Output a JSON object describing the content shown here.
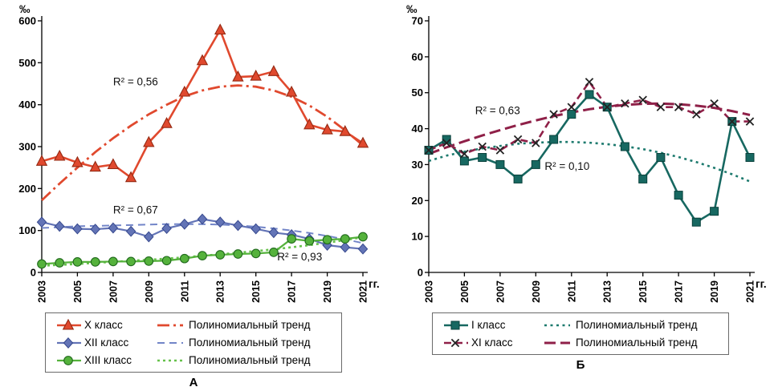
{
  "chart_data": [
    {
      "type": "line",
      "panel_label": "А",
      "y_unit": "‰",
      "x_unit": "гг.",
      "y_min": 0,
      "y_max": 600,
      "y_step": 100,
      "y_ticks": [
        0,
        100,
        200,
        300,
        400,
        500,
        600
      ],
      "x": [
        2003,
        2004,
        2005,
        2006,
        2007,
        2008,
        2009,
        2010,
        2011,
        2012,
        2013,
        2014,
        2015,
        2016,
        2017,
        2018,
        2019,
        2020,
        2021
      ],
      "x_tick_labels": [
        "2003",
        "2005",
        "2007",
        "2009",
        "2011",
        "2013",
        "2015",
        "2017",
        "2019",
        "2021"
      ],
      "grid": false,
      "legend_position": "bottom",
      "series": [
        {
          "label": "X класс",
          "color": "#e0492e",
          "line_width": 2.6,
          "marker": "triangle",
          "marker_color": "#e0492e",
          "marker_stroke": "#942912",
          "values": [
            265,
            277,
            262,
            251,
            257,
            226,
            310,
            355,
            430,
            505,
            578,
            466,
            468,
            479,
            430,
            352,
            340,
            336,
            308
          ]
        },
        {
          "label": "XII класс",
          "color": "#6374b6",
          "line_width": 2.2,
          "marker": "diamond",
          "marker_color": "#6374b6",
          "marker_stroke": "#36488e",
          "values": [
            120,
            110,
            104,
            103,
            106,
            98,
            85,
            105,
            115,
            127,
            120,
            112,
            104,
            95,
            90,
            80,
            65,
            60,
            56
          ]
        },
        {
          "label": "XIII класс",
          "color": "#55b23c",
          "line_width": 2.3,
          "marker": "circle",
          "marker_color": "#55b23c",
          "marker_stroke": "#20691c",
          "values": [
            20,
            23,
            25,
            25,
            26,
            26,
            27,
            28,
            33,
            40,
            42,
            44,
            45,
            48,
            80,
            75,
            78,
            80,
            85
          ]
        }
      ],
      "trends": [
        {
          "label": "Полиномиальный тренд",
          "color": "#e0492e",
          "width": 2.8,
          "dash": "15 5 3 5",
          "r2": {
            "text": "R² = 0,56",
            "x": 2007,
            "y": 446
          },
          "values": [
            172,
            212,
            250,
            287,
            320,
            350,
            377,
            400,
            420,
            434,
            443,
            446,
            443,
            434,
            419,
            398,
            371,
            339,
            303
          ]
        },
        {
          "label": "Полиномиальный тренд",
          "color": "#7285c8",
          "width": 2,
          "dash": "9 6",
          "r2": {
            "text": "R² = 0,67",
            "x": 2007,
            "y": 140
          },
          "values": [
            106,
            108,
            110,
            111,
            112,
            113,
            114,
            115,
            115,
            115,
            114,
            112,
            109,
            105,
            100,
            94,
            87,
            79,
            70
          ]
        },
        {
          "label": "Полиномиальный тренд",
          "color": "#66c14b",
          "width": 2.6,
          "dash": "3 4",
          "r2": {
            "text": "R² = 0,93",
            "x": 2016.2,
            "y": 29
          },
          "values": [
            16,
            18,
            20,
            23,
            25,
            28,
            30,
            33,
            36,
            40,
            43,
            47,
            51,
            55,
            60,
            65,
            71,
            77,
            84
          ]
        }
      ]
    },
    {
      "type": "line",
      "panel_label": "Б",
      "y_unit": "‰",
      "x_unit": "гг.",
      "y_min": 0,
      "y_max": 70,
      "y_step": 10,
      "y_ticks": [
        0,
        10,
        20,
        30,
        40,
        50,
        60,
        70
      ],
      "x": [
        2003,
        2004,
        2005,
        2006,
        2007,
        2008,
        2009,
        2010,
        2011,
        2012,
        2013,
        2014,
        2015,
        2016,
        2017,
        2018,
        2019,
        2020,
        2021
      ],
      "x_tick_labels": [
        "2003",
        "2005",
        "2007",
        "2009",
        "2011",
        "2013",
        "2015",
        "2017",
        "2019",
        "2021"
      ],
      "grid": false,
      "legend_position": "bottom",
      "series": [
        {
          "label": "I класс",
          "color": "#176861",
          "line_width": 2.6,
          "marker": "square",
          "marker_color": "#176861",
          "marker_stroke": "#08403b",
          "values": [
            34,
            37,
            31,
            32,
            30,
            26,
            30,
            37,
            44,
            49.5,
            46,
            35,
            26,
            32,
            21.5,
            14,
            17,
            42,
            32
          ]
        },
        {
          "label": "XI класс",
          "color": "#8f2048",
          "line_width": 2.6,
          "dash": "9 5",
          "marker": "x",
          "marker_color": "none",
          "marker_stroke": "#222222",
          "values": [
            34,
            36,
            33,
            35,
            34,
            37,
            36,
            44,
            46,
            53,
            46,
            47,
            48,
            46,
            46,
            44,
            47,
            42,
            42
          ]
        }
      ],
      "trends": [
        {
          "label": "Полиномиальный тренд",
          "color": "#1d7a6e",
          "width": 2.6,
          "dash": "3 4.5",
          "r2": {
            "text": "R² = 0,10",
            "x": 2009.5,
            "y": 28.5
          },
          "values": [
            31,
            32.5,
            33.6,
            34.5,
            35.2,
            35.8,
            36.1,
            36.3,
            36.3,
            36.1,
            35.7,
            35.1,
            34.3,
            33.3,
            32.1,
            30.7,
            29.1,
            27.3,
            25.3
          ]
        },
        {
          "label": "Полиномиальный тренд",
          "color": "#8f2048",
          "width": 3,
          "dash": "14 6",
          "r2": {
            "text": "R² = 0,63",
            "x": 2005.6,
            "y": 44
          },
          "values": [
            33,
            34.8,
            36.5,
            38.1,
            39.6,
            41,
            42.3,
            43.5,
            44.5,
            45.4,
            46.1,
            46.6,
            46.9,
            47,
            46.8,
            46.4,
            45.8,
            44.9,
            43.8
          ]
        }
      ]
    }
  ]
}
